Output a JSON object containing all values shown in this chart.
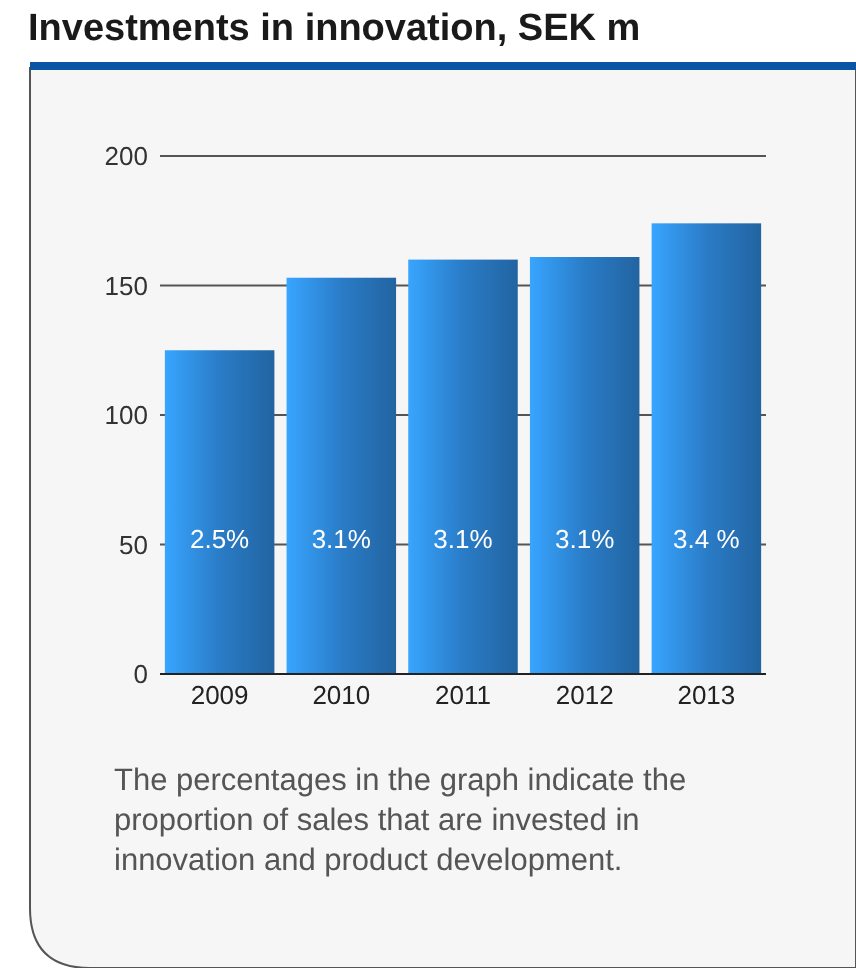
{
  "chart_data": {
    "type": "bar",
    "title": "Investments in innovation, SEK m",
    "categories": [
      "2009",
      "2010",
      "2011",
      "2012",
      "2013"
    ],
    "values": [
      125,
      153,
      160,
      161,
      174
    ],
    "color": "#2a7cc7",
    "ylim": [
      0,
      200
    ],
    "yticks": [
      0,
      50,
      100,
      150,
      200
    ],
    "grid": "y",
    "annotations": [
      "2.5%",
      "3.1%",
      "3.1%",
      "3.1%",
      "3.4 %",
      "The percentages in the graph indicate the proportion of sales that are invested in innovation and product development."
    ]
  }
}
